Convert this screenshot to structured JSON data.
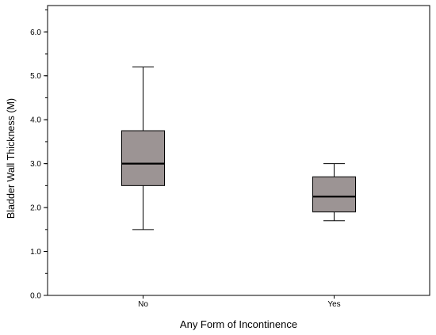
{
  "chart_data": {
    "type": "boxplot",
    "xlabel": "Any Form of Incontinence",
    "ylabel": "Bladder Wall Thickness (M)",
    "categories": [
      "No",
      "Yes"
    ],
    "boxes": [
      {
        "category": "No",
        "min": 1.5,
        "q1": 2.5,
        "median": 3.0,
        "q3": 3.75,
        "max": 5.2
      },
      {
        "category": "Yes",
        "min": 1.7,
        "q1": 1.9,
        "median": 2.25,
        "q3": 2.7,
        "max": 3.0
      }
    ],
    "ylim": [
      0,
      6.6
    ],
    "yticks": [
      0.0,
      1.0,
      2.0,
      3.0,
      4.0,
      5.0,
      6.0
    ],
    "ytick_labels": [
      "0.0",
      "1.0",
      "2.0",
      "3.0",
      "4.0",
      "5.0",
      "6.0"
    ],
    "minor_ytick_step": 0.5,
    "grid": false,
    "colors": {
      "box_fill": "#9c9494",
      "line": "#000000",
      "background": "#ffffff"
    }
  }
}
